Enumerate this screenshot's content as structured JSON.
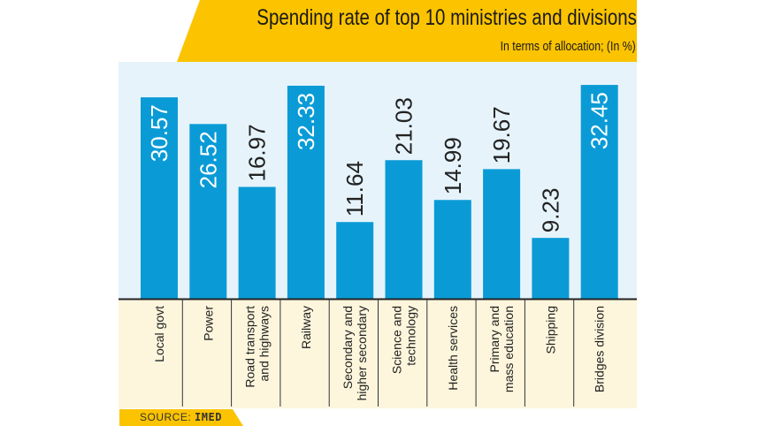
{
  "chart_data": {
    "type": "bar",
    "title": "Spending rate of top 10 ministries and divisions",
    "subtitle": "In terms of allocation; (In %)",
    "categories": [
      [
        "Local govt"
      ],
      [
        "Power"
      ],
      [
        "Road transport",
        "and highways"
      ],
      [
        "Railway"
      ],
      [
        "Secondary and",
        "higher secondary"
      ],
      [
        "Science and",
        "technology"
      ],
      [
        "Health services"
      ],
      [
        "Primary and",
        "mass education"
      ],
      [
        "Shipping"
      ],
      [
        "Bridges division"
      ]
    ],
    "values": [
      30.57,
      26.52,
      16.97,
      32.33,
      11.64,
      21.03,
      14.99,
      19.67,
      9.23,
      32.45
    ],
    "value_labels": [
      "30.57",
      "26.52",
      "16.97",
      "32.33",
      "11.64",
      "21.03",
      "14.99",
      "19.67",
      "9.23",
      "32.45"
    ],
    "ylim": [
      0,
      35
    ],
    "grid": false,
    "legend": "none",
    "colors": {
      "bar": "#0A9BD6",
      "plot_bg": "#E6F3FB",
      "label_bg": "#FDF6DC",
      "banner": "#FBC300"
    }
  },
  "source": {
    "label": "SOURCE:",
    "value": "IMED"
  }
}
